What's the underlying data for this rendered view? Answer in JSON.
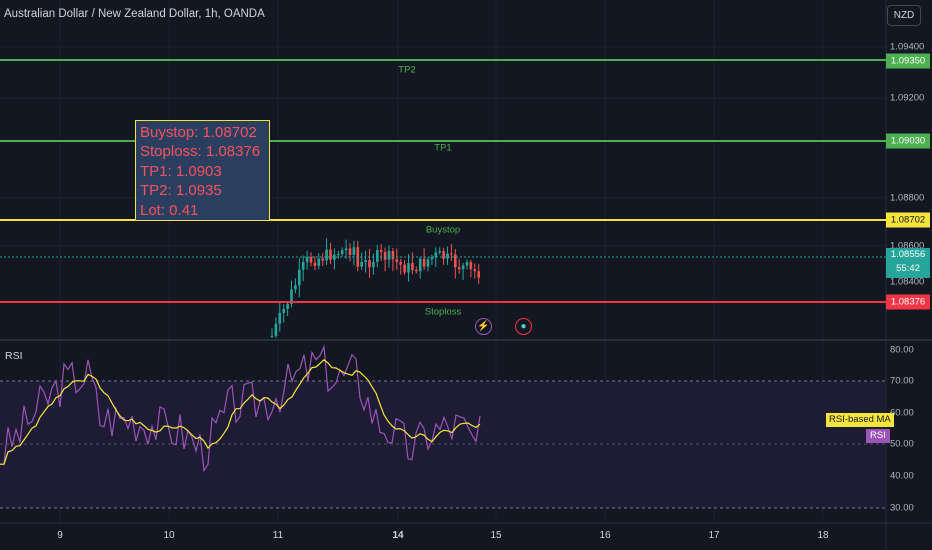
{
  "header": {
    "title": "Australian Dollar / New Zealand Dollar, 1h, OANDA",
    "currency": "NZD"
  },
  "note": {
    "lines": [
      "Buystop: 1.08702",
      "Stoploss: 1.08376",
      "TP1: 1.0903",
      "TP2: 1.0935",
      "Lot: 0.41"
    ]
  },
  "levels": {
    "tp2": {
      "label": "TP2",
      "price": "1.09350",
      "color": "#4caf50"
    },
    "tp1": {
      "label": "TP1",
      "price": "1.09030",
      "color": "#4caf50"
    },
    "buystop": {
      "label": "Buystop",
      "price": "1.08702",
      "color": "#f5e53b"
    },
    "stoploss": {
      "label": "Stoploss",
      "price": "1.08376",
      "color": "#f23645"
    }
  },
  "current_price": {
    "price": "1.08556",
    "countdown": "55:42"
  },
  "price_axis": {
    "ticks": [
      "1.09400",
      "1.09200",
      "1.08800",
      "1.08600",
      "1.08400"
    ]
  },
  "rsi_pane": {
    "title": "RSI",
    "ticks": [
      "80.00",
      "70.00",
      "60.00",
      "50.00",
      "40.00",
      "30.00"
    ],
    "ma_label": "RSI-based MA",
    "rsi_label": "RSI"
  },
  "time_axis": {
    "ticks": [
      "9",
      "10",
      "11",
      "14",
      "15",
      "16",
      "17",
      "18"
    ]
  },
  "colors": {
    "background": "#131722",
    "up": "#26a69a",
    "down": "#ef5350",
    "rsi_line": "#9c54b8",
    "rsi_ma": "#f5e53b",
    "rsi_band": "#1e1c35"
  },
  "icons": [
    "lightning-icon",
    "globe-icon"
  ]
}
